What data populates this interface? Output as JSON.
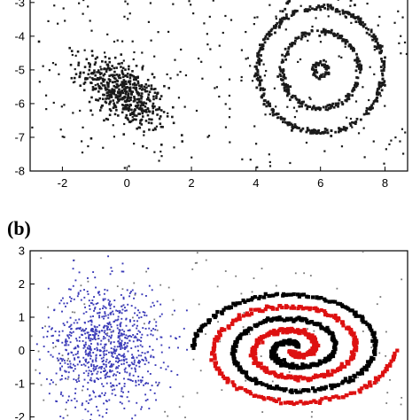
{
  "panels": {
    "b": {
      "label": "(b)"
    }
  },
  "chart_data": [
    {
      "type": "scatter",
      "panel": "a",
      "title": "",
      "xlabel": "",
      "ylabel": "",
      "xlim": [
        -3,
        8.7
      ],
      "ylim": [
        -8,
        -2.4
      ],
      "xticks": [
        -2,
        0,
        2,
        4,
        6,
        8
      ],
      "yticks": [
        -3,
        -4,
        -5,
        -6,
        -7,
        -8
      ],
      "grid": false,
      "colors": {
        "points": "#1a1a1a"
      },
      "series": [
        {
          "kind": "gaussian-cluster",
          "center": [
            -0.1,
            -5.7
          ],
          "spread": [
            0.65,
            0.55
          ],
          "correlation": -0.6,
          "count": 520
        },
        {
          "kind": "concentric-rings",
          "center": [
            6.0,
            -5.0
          ],
          "radii": [
            0.22,
            1.2,
            1.95
          ],
          "count_per_ring": [
            60,
            260,
            400
          ]
        },
        {
          "kind": "uniform-noise",
          "count": 260
        }
      ]
    },
    {
      "type": "scatter",
      "panel": "b",
      "title": "",
      "xlabel": "",
      "ylabel": "",
      "xlim": [
        -3,
        13
      ],
      "ylim": [
        -2.6,
        3
      ],
      "xticks": [],
      "yticks": [
        3,
        2,
        1,
        0,
        -1,
        -2
      ],
      "grid": false,
      "colors": {
        "cluster": "#3b3bb8",
        "spiral_black": "#000000",
        "spiral_red": "#dd1111",
        "noise": "#777777"
      },
      "series": [
        {
          "kind": "gaussian-cluster",
          "color": "cluster",
          "center": [
            0.2,
            0.1
          ],
          "spread": [
            1.2,
            0.95
          ],
          "count": 900
        },
        {
          "kind": "spiral",
          "color": "spiral_black",
          "center": [
            8.2,
            0.05
          ],
          "turns": 2.5,
          "count": 520
        },
        {
          "kind": "spiral",
          "color": "spiral_red",
          "center": [
            8.2,
            0.05
          ],
          "turns": 2.5,
          "count": 520
        },
        {
          "kind": "uniform-noise",
          "color": "noise",
          "count": 130
        }
      ]
    }
  ]
}
